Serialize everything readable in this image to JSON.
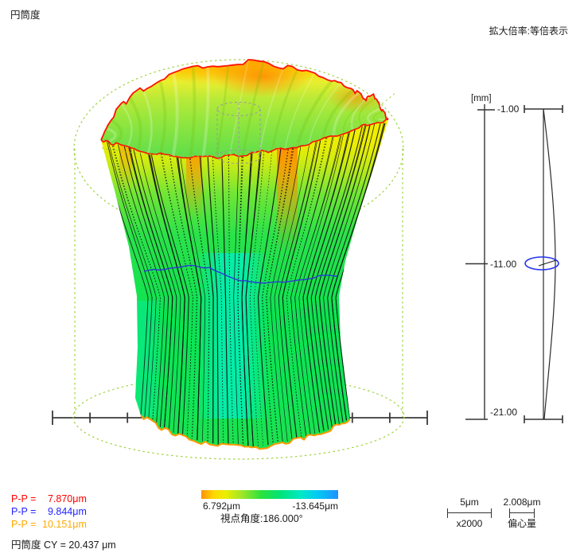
{
  "report": {
    "title": "円筒度",
    "magnification": "拡大倍率:等倍表示",
    "view_angle": "視点角度:186.000°"
  },
  "results": {
    "pp": [
      {
        "label": "P-P =",
        "value": "7.870μm",
        "color": "#ff0000"
      },
      {
        "label": "P-P =",
        "value": "9.844μm",
        "color": "#2323ff"
      },
      {
        "label": "P-P =",
        "value": "10.151μm",
        "color": "#ffaa00"
      }
    ],
    "cylindricity_label": "円筒度 CY =",
    "cylindricity_value": "20.437 μm"
  },
  "color_scale": {
    "max_label": "6.792μm",
    "min_label": "-13.645μm",
    "stops": [
      [
        "#ff9100",
        0
      ],
      [
        "#ffd800",
        9
      ],
      [
        "#e9ee00",
        18
      ],
      [
        "#9ce62a",
        30
      ],
      [
        "#2ae23c",
        44
      ],
      [
        "#00e37a",
        58
      ],
      [
        "#00e9c2",
        72
      ],
      [
        "#00cdf2",
        84
      ],
      [
        "#1e90ff",
        100
      ]
    ]
  },
  "profile_axis": {
    "unit": "[mm]",
    "tick_top": "-1.00",
    "tick_mid": "-11.00",
    "tick_bottom": "-21.00"
  },
  "scale_bars": {
    "deviation": {
      "value": "5μm",
      "factor": "x2000"
    },
    "eccentricity": {
      "value": "2.008μm",
      "label": "偏心量"
    }
  },
  "plot_colors": {
    "reference_dash": "#9fd43c",
    "datum_dash": "#9c9c9c",
    "rim_top": "#ff1000",
    "rim_bottom": "#ff9a00",
    "generatrix": "#101010",
    "section_trace": "#2b3bd6",
    "ruler": "#3a3a3a",
    "profile_line": "#2b2b2b",
    "marker_ellipse": "#2233ee",
    "surface_green": "#0ce352",
    "surface_cyan": "#00efc4",
    "surface_yellow": "#eef000",
    "surface_orange": "#ff8c00"
  },
  "chart_data": [
    {
      "type": "3d-surface",
      "title": "円筒度",
      "subtitle": "Cylindricity 3D deviation plot of measured cylinder vs reference cylinder",
      "magnification": "拡大倍率:等倍表示",
      "view_angle_deg": 186.0,
      "color_scale_um": {
        "max": 6.792,
        "min": -13.645
      },
      "deviation_scalebar": {
        "length_label": "5μm",
        "magnification": "x2000"
      },
      "eccentricity": {
        "value_um": 2.008,
        "label": "偏心量"
      },
      "results": {
        "cylindricity_CY_um": 20.437,
        "peak_to_peak_um": [
          {
            "series_color": "red",
            "value": 7.87
          },
          {
            "series_color": "blue",
            "value": 9.844
          },
          {
            "series_color": "orange",
            "value": 10.151
          }
        ]
      },
      "legend_position": "bottom",
      "grid": false
    },
    {
      "type": "line",
      "title": "Axial straightness profile",
      "y_unit": "mm",
      "y_ticks": [
        -1.0,
        -11.0,
        -21.0
      ],
      "y_range": [
        -21.0,
        -1.0
      ],
      "marked_section_mm": -11.0,
      "annotations": [
        "blue ellipse marker with eccentricity vector at -11.00 mm"
      ]
    }
  ]
}
